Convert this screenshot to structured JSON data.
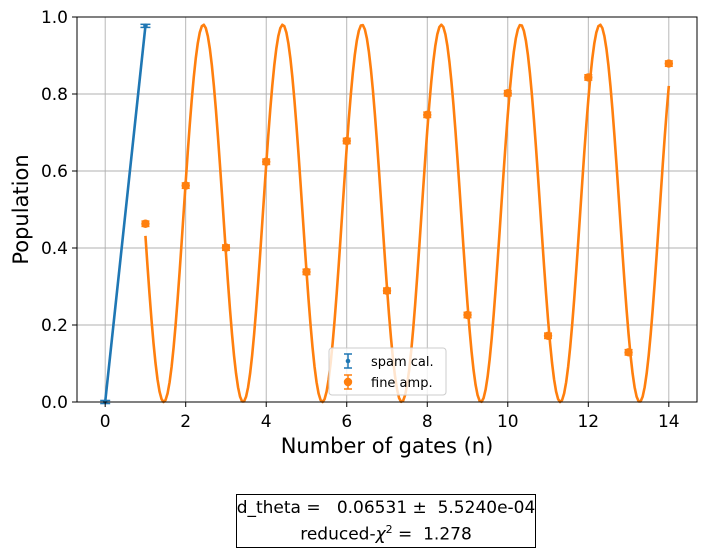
{
  "chart_data": {
    "type": "scatter",
    "xlabel": "Number of gates (n)",
    "ylabel": "Population",
    "xlim": [
      -0.7,
      14.7
    ],
    "ylim": [
      0.0,
      1.0
    ],
    "xticks": [
      0,
      2,
      4,
      6,
      8,
      10,
      12,
      14
    ],
    "xtick_labels": [
      "0",
      "2",
      "4",
      "6",
      "8",
      "10",
      "12",
      "14"
    ],
    "yticks": [
      0.0,
      0.2,
      0.4,
      0.6,
      0.8,
      1.0
    ],
    "ytick_labels": [
      "0.0",
      "0.2",
      "0.4",
      "0.6",
      "0.8",
      "1.0"
    ],
    "grid": true,
    "legend_position": "bottom-center",
    "series": [
      {
        "name": "spam cal.",
        "kind": "errorbar",
        "color": "#1f77b4",
        "x": [
          0,
          1
        ],
        "y": [
          0.0,
          0.977
        ],
        "yerr": [
          0.004,
          0.004
        ]
      },
      {
        "name": "fine amp.",
        "kind": "errorbar",
        "color": "#ff7f0e",
        "x": [
          1,
          2,
          3,
          4,
          5,
          6,
          7,
          8,
          9,
          10,
          11,
          12,
          13,
          14
        ],
        "y": [
          0.463,
          0.562,
          0.401,
          0.624,
          0.338,
          0.678,
          0.289,
          0.746,
          0.226,
          0.802,
          0.172,
          0.843,
          0.129,
          0.879
        ],
        "yerr": [
          0.007,
          0.007,
          0.007,
          0.007,
          0.007,
          0.007,
          0.007,
          0.007,
          0.007,
          0.007,
          0.007,
          0.007,
          0.007,
          0.007
        ]
      }
    ],
    "fit_curves": [
      {
        "series": "spam cal.",
        "color": "#1f77b4",
        "x": [
          0,
          1
        ],
        "y": [
          0.0,
          0.977
        ]
      },
      {
        "series": "fine amp.",
        "color": "#ff7f0e",
        "model": "0.49 - 0.49*cos(n*(pi/2 + d_theta)*(pi... ) ) oscillation",
        "x_start": 1,
        "x_end": 14,
        "min_value": 0.0,
        "max_value": 0.98,
        "peaks_x": [
          2.44,
          4.41,
          6.37,
          8.34,
          10.31,
          12.27
        ],
        "troughs_x": [
          1.46,
          3.43,
          5.39,
          7.36,
          9.33,
          11.29,
          13.26
        ]
      }
    ],
    "annotation": {
      "line1": "d_theta =   0.06531 ±  5.5240e-04",
      "line2_prefix": "reduced-",
      "line2_symbol": "χ",
      "line2_sup": "2",
      "line2_suffix": " =  1.278"
    }
  }
}
